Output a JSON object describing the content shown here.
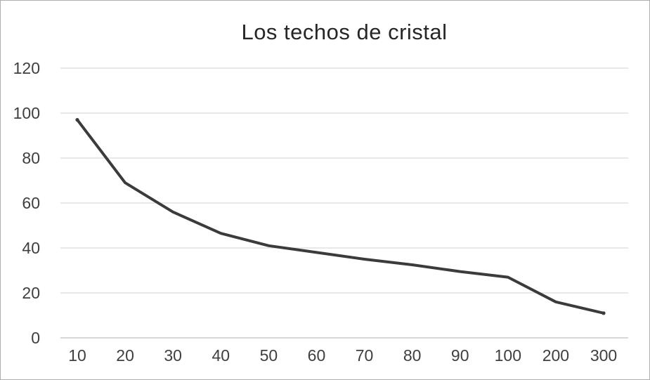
{
  "page": {
    "background": "#ffffff",
    "border_color": "#aeaeae"
  },
  "chart_data": {
    "type": "line",
    "title": "Los techos de cristal",
    "categories": [
      "10",
      "20",
      "30",
      "40",
      "50",
      "60",
      "70",
      "80",
      "90",
      "100",
      "200",
      "300"
    ],
    "values": [
      97,
      69,
      56,
      46.5,
      41,
      38,
      35,
      32.5,
      29.5,
      27,
      16,
      11
    ],
    "xlabel": "",
    "ylabel": "",
    "ylim": [
      0,
      120
    ],
    "yticks": [
      0,
      20,
      40,
      60,
      80,
      100,
      120
    ],
    "grid": true,
    "legend_position": "none",
    "line_color": "#3b3b3b",
    "grid_color": "#d9d9d9",
    "axis_line_color": "#bfbfbf",
    "tick_label_color": "#3f3f3f",
    "title_color": "#262626"
  }
}
